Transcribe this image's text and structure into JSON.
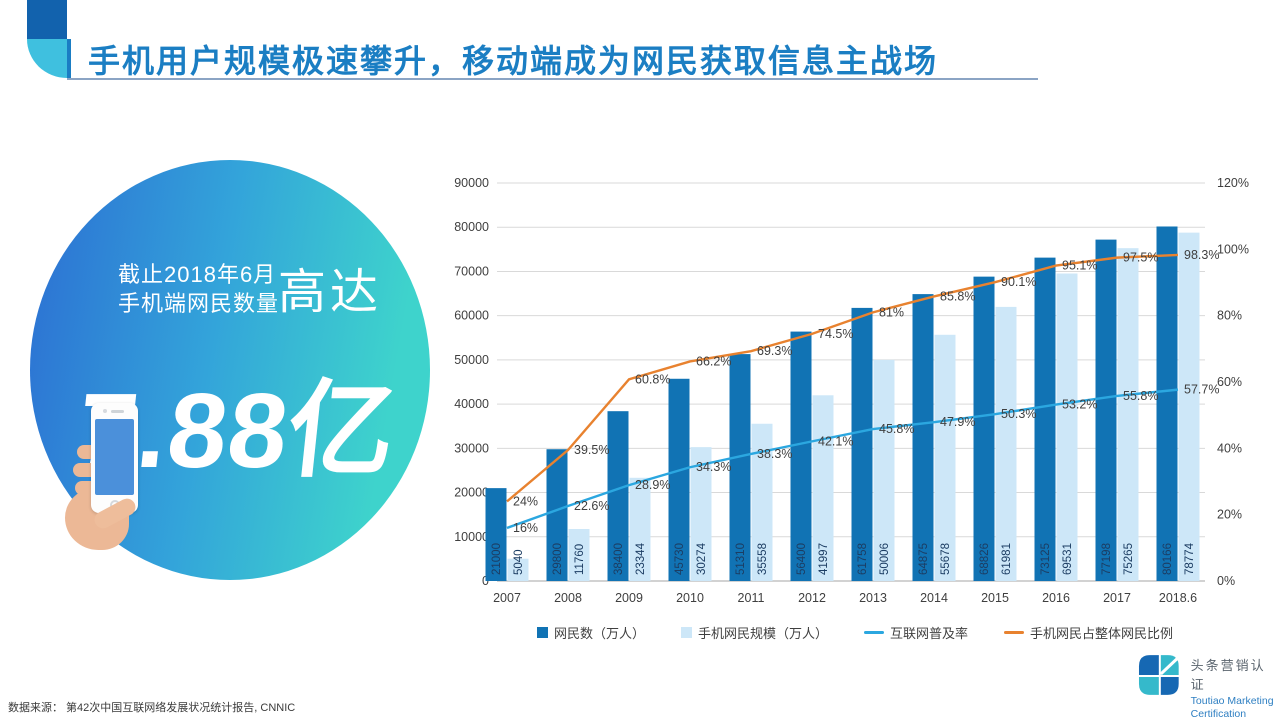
{
  "slide": {
    "title": "手机用户规模极速攀升，移动端成为网民获取信息主战场"
  },
  "hero": {
    "date_line": "截止2018年6月",
    "subject_line": "手机端网民数量",
    "emphasis": "高达",
    "big_number": "7.88亿"
  },
  "chart_data": {
    "type": "combo",
    "categories": [
      "2007",
      "2008",
      "2009",
      "2010",
      "2011",
      "2012",
      "2013",
      "2014",
      "2015",
      "2016",
      "2017",
      "2018.6"
    ],
    "series": [
      {
        "name": "网民数（万人）",
        "type": "bar",
        "axis": "left",
        "color": "#1173b4",
        "values": [
          21000,
          29800,
          38400,
          45730,
          51310,
          56400,
          61758,
          64875,
          68826,
          73125,
          77198,
          80166
        ]
      },
      {
        "name": "手机网民规模（万人）",
        "type": "bar",
        "axis": "left",
        "color": "#cde7f8",
        "values": [
          5040,
          11760,
          23344,
          30274,
          35558,
          41997,
          50006,
          55678,
          61981,
          69531,
          75265,
          78774
        ]
      },
      {
        "name": "互联网普及率",
        "type": "line",
        "axis": "right",
        "color": "#2ba7e0",
        "values": [
          16,
          22.6,
          28.9,
          34.3,
          38.3,
          42.1,
          45.8,
          47.9,
          50.3,
          53.2,
          55.8,
          57.7
        ],
        "labels": [
          "16%",
          "22.6%",
          "28.9%",
          "34.3%",
          "38.3%",
          "42.1%",
          "45.8%",
          "47.9%",
          "50.3%",
          "53.2%",
          "55.8%",
          "57.7%"
        ]
      },
      {
        "name": "手机网民占整体网民比例",
        "type": "line",
        "axis": "right",
        "color": "#e8822f",
        "values": [
          24,
          39.5,
          60.8,
          66.2,
          69.3,
          74.5,
          81,
          85.8,
          90.1,
          95.1,
          97.5,
          98.3
        ],
        "labels": [
          "24%",
          "39.5%",
          "60.8%",
          "66.2%",
          "69.3%",
          "74.5%",
          "81%",
          "85.8%",
          "90.1%",
          "95.1%",
          "97.5%",
          "98.3%"
        ]
      }
    ],
    "left_axis": {
      "min": 0,
      "max": 90000,
      "ticks": [
        "0",
        "10000",
        "20000",
        "30000",
        "40000",
        "50000",
        "60000",
        "70000",
        "80000",
        "90000"
      ]
    },
    "right_axis": {
      "min": 0,
      "max": 120,
      "ticks": [
        "0%",
        "20%",
        "40%",
        "60%",
        "80%",
        "100%",
        "120%"
      ]
    },
    "grid": true,
    "legend_position": "bottom"
  },
  "footer": {
    "source": "数据来源： 第42次中国互联网络发展状况统计报告, CNNIC"
  },
  "logo": {
    "cn": "头条营销认证",
    "en_line1": "Toutiao Marketing",
    "en_line2": "Certification"
  }
}
